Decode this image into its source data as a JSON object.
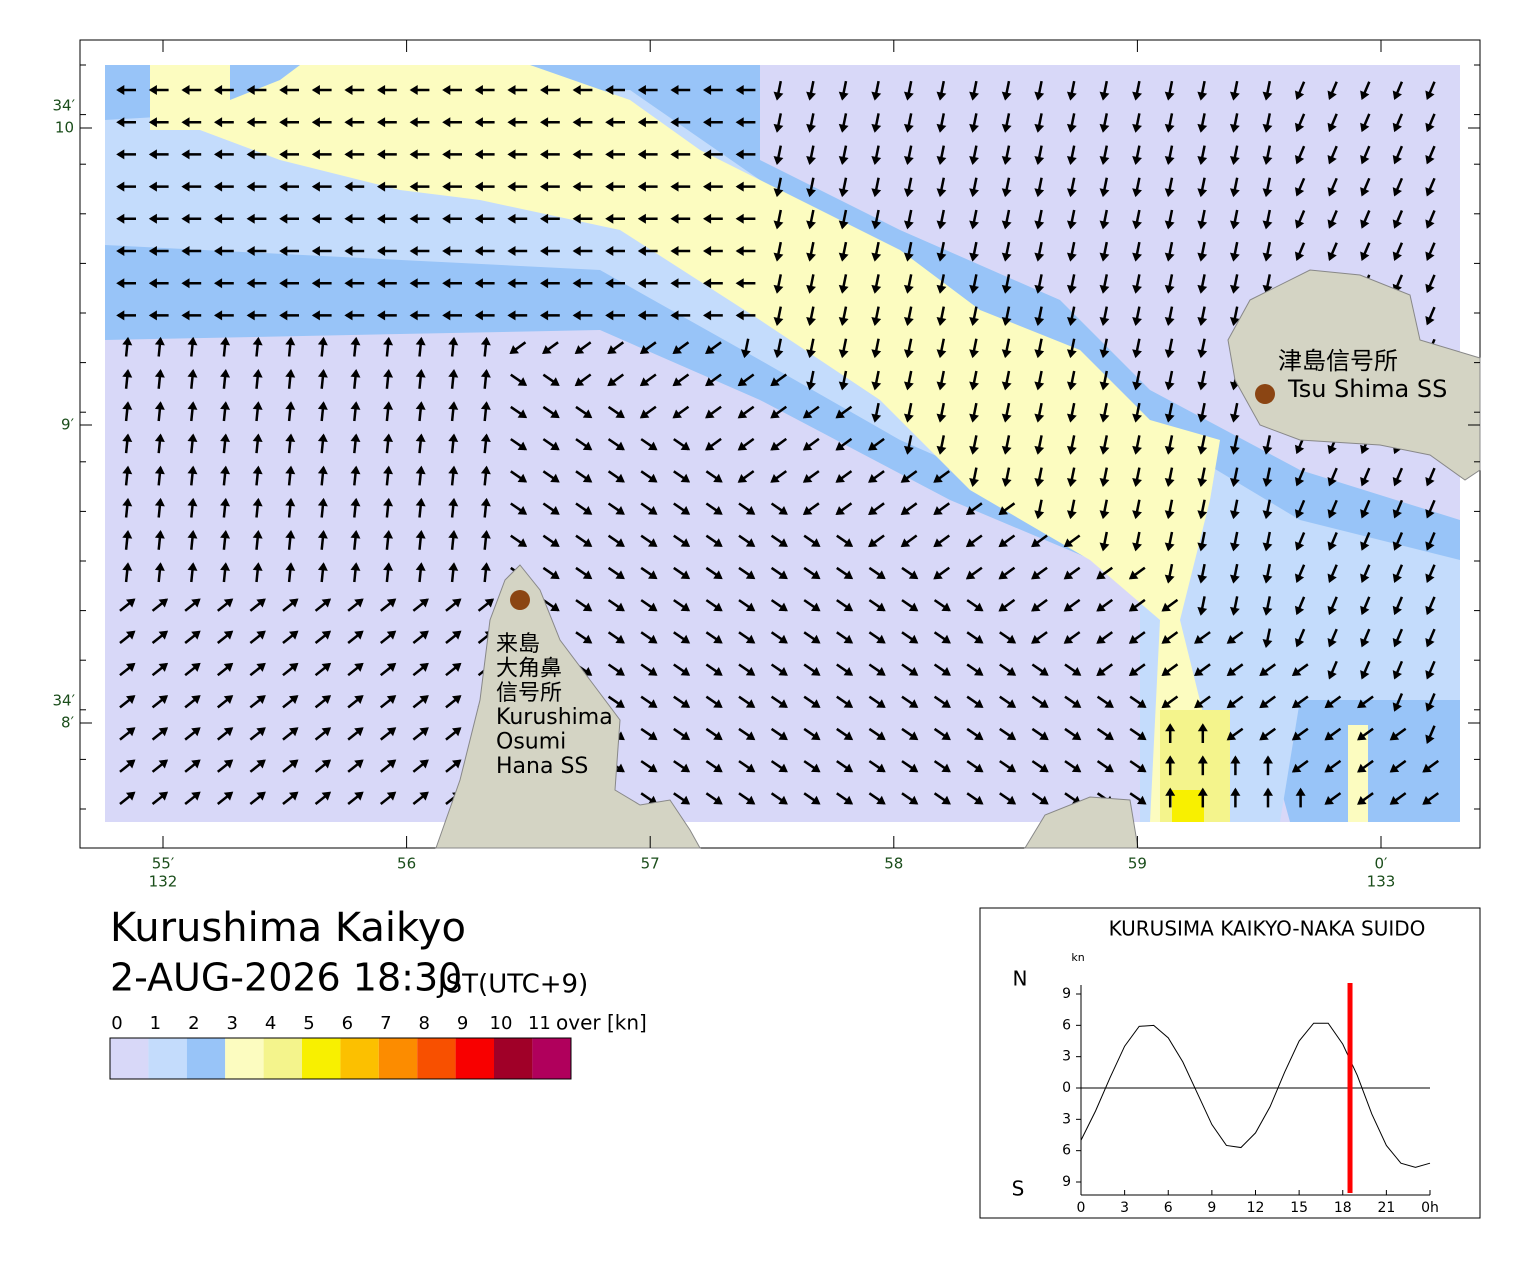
{
  "map": {
    "title": "Kurushima Kaikyo",
    "datetime": "2-AUG-2026 18:30",
    "timezone": "JST(UTC+9)",
    "lat_ticks": [
      {
        "top": "34′",
        "label": "10"
      },
      {
        "label": "9′"
      },
      {
        "top": "34′",
        "label": "8′"
      }
    ],
    "lon_ticks": [
      {
        "label": "55′",
        "bottom": "132"
      },
      {
        "label": "56"
      },
      {
        "label": "57"
      },
      {
        "label": "58"
      },
      {
        "label": "59"
      },
      {
        "label": "0′",
        "bottom": "133"
      }
    ],
    "stations": [
      {
        "lines": [
          "津島信号所",
          "Tsu Shima SS"
        ]
      },
      {
        "lines": [
          "来島",
          "大角鼻",
          "信号所",
          "Kurushima",
          "Osumi",
          "Hana SS"
        ]
      }
    ],
    "legend": {
      "labels": [
        "0",
        "1",
        "2",
        "3",
        "4",
        "5",
        "6",
        "7",
        "8",
        "9",
        "10",
        "11"
      ],
      "unit": "over [kn]",
      "colors": [
        "#d8d8f8",
        "#c4dcfc",
        "#98c4f8",
        "#fcfcc0",
        "#f4f48c",
        "#f8f000",
        "#fcc000",
        "#fc8c00",
        "#f85000",
        "#f80000",
        "#a00028",
        "#b0005c"
      ]
    }
  },
  "chart_data": {
    "type": "line",
    "title": "KURUSIMA KAIKYO-NAKA SUIDO",
    "y_unit": "kn",
    "north_label": "N",
    "south_label": "S",
    "x": [
      0,
      1,
      2,
      3,
      4,
      5,
      6,
      7,
      8,
      9,
      10,
      11,
      12,
      13,
      14,
      15,
      16,
      17,
      18,
      19,
      20,
      21,
      22,
      23,
      24
    ],
    "values": [
      -5,
      -2.2,
      1,
      4,
      5.9,
      6,
      4.8,
      2.5,
      -0.5,
      -3.5,
      -5.5,
      -5.7,
      -4.3,
      -1.8,
      1.5,
      4.5,
      6.2,
      6.2,
      4.2,
      1.2,
      -2.5,
      -5.5,
      -7.2,
      -7.6,
      -7.2
    ],
    "color": "#000000",
    "marker_x": 18.5,
    "marker_color": "#ff0000",
    "xlim": [
      0,
      24
    ],
    "ylim": [
      -9,
      9
    ],
    "xticks": [
      0,
      3,
      6,
      9,
      12,
      15,
      18,
      21,
      {
        "value": 24,
        "label": "0h"
      }
    ],
    "yticks": [
      9,
      6,
      3,
      0,
      {
        "value": -3,
        "label": "3"
      },
      {
        "value": -6,
        "label": "6"
      },
      {
        "value": -9,
        "label": "9"
      }
    ]
  }
}
